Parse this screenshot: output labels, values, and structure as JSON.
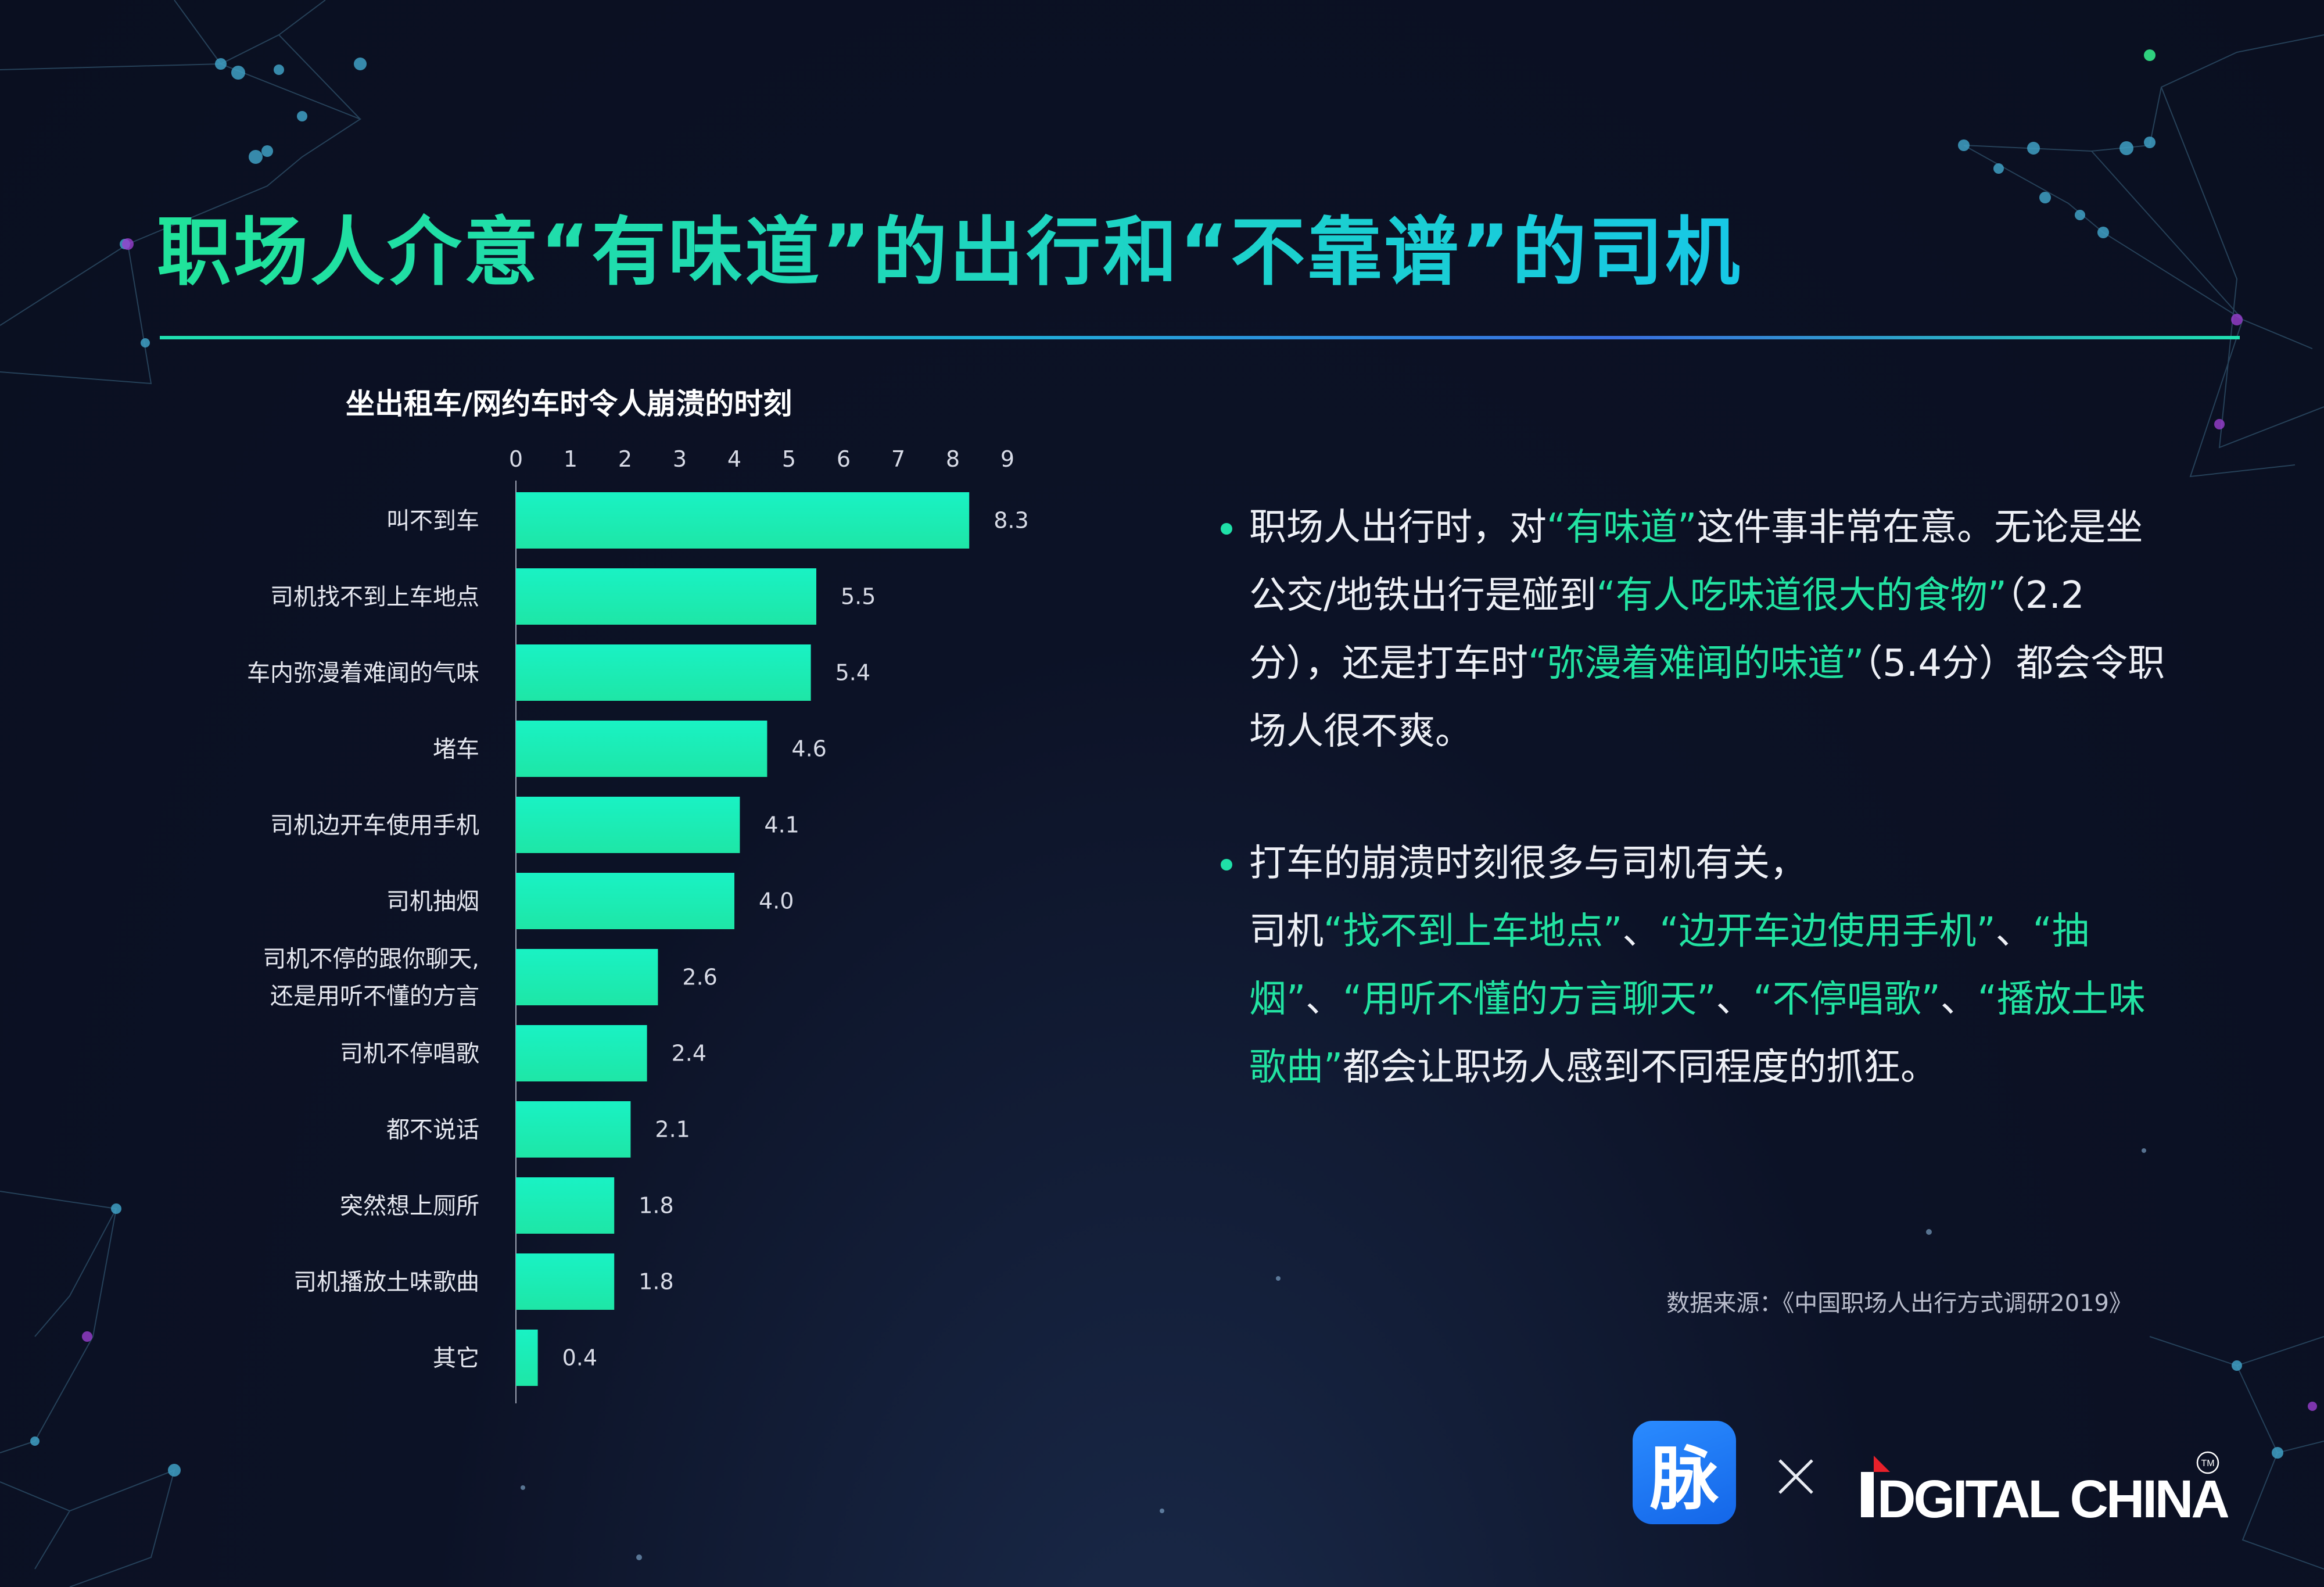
{
  "title": "职场人介意“有味道”的出行和“不靠谱”的司机",
  "chart_data": {
    "type": "bar",
    "orientation": "horizontal",
    "title": "坐出租车/网约车时令人崩溃的时刻",
    "categories": [
      [
        "叫不到车"
      ],
      [
        "司机找不到上车地点"
      ],
      [
        "车内弥漫着难闻的气味"
      ],
      [
        "堵车"
      ],
      [
        "司机边开车使用手机"
      ],
      [
        "司机抽烟"
      ],
      [
        "司机不停的跟你聊天,",
        "还是用听不懂的方言"
      ],
      [
        "司机不停唱歌"
      ],
      [
        "都不说话"
      ],
      [
        "突然想上厕所"
      ],
      [
        "司机播放土味歌曲"
      ],
      [
        "其它"
      ]
    ],
    "values": [
      8.3,
      5.5,
      5.4,
      4.6,
      4.1,
      4.0,
      2.6,
      2.4,
      2.1,
      1.8,
      1.8,
      0.4
    ],
    "value_labels": [
      "8.3",
      "5.5",
      "5.4",
      "4.6",
      "4.1",
      "4.0",
      "2.6",
      "2.4",
      "2.1",
      "1.8",
      "1.8",
      "0.4"
    ],
    "xlim": [
      0,
      9
    ],
    "xticks": [
      "0",
      "1",
      "2",
      "3",
      "4",
      "5",
      "6",
      "7",
      "8",
      "9"
    ],
    "axis_position": "top",
    "grid": false,
    "bar_color": "#1ee6a6",
    "bar_color_light": "#19f2c4"
  },
  "bullets": [
    [
      {
        "t": "职场人出行时，对"
      },
      {
        "t": "“有味道”",
        "hl": true
      },
      {
        "t": "这件事非常在意。无论是坐公交/地铁出行是碰到"
      },
      {
        "t": "“有人吃味道很大的食物”",
        "hl": true
      },
      {
        "t": "（2.2分），还是打车时"
      },
      {
        "t": "“弥漫着难闻的味道”",
        "hl": true
      },
      {
        "t": "（5.4分）都会令职场人很不爽。"
      }
    ],
    [
      {
        "t": "打车的崩溃时刻很多与司机有关，",
        "br": true
      },
      {
        "t": "司机"
      },
      {
        "t": "“找不到上车地点”",
        "hl": true
      },
      {
        "t": "、"
      },
      {
        "t": "“边开车边使用手机”",
        "hl": true
      },
      {
        "t": "、"
      },
      {
        "t": "“抽烟”",
        "hl": true
      },
      {
        "t": "、"
      },
      {
        "t": "“用听不懂的方言聊天”",
        "hl": true
      },
      {
        "t": "、"
      },
      {
        "t": "“不停唱歌”",
        "hl": true
      },
      {
        "t": "、"
      },
      {
        "t": "“播放土味歌曲”",
        "hl": true
      },
      {
        "t": "都会让职场人感到不同程度的抓狂。"
      }
    ]
  ],
  "source": "数据来源：《中国职场人出行方式调研2019》",
  "logos": {
    "maimai": "脉",
    "partner": "IDGITAL CHINA",
    "partner_mark": "TM",
    "separator_icon": "times-icon"
  },
  "colors": {
    "accent": "#22e3a2",
    "title_gradient": [
      "#20e39a",
      "#17c8e6"
    ],
    "background": "#0c1226"
  }
}
